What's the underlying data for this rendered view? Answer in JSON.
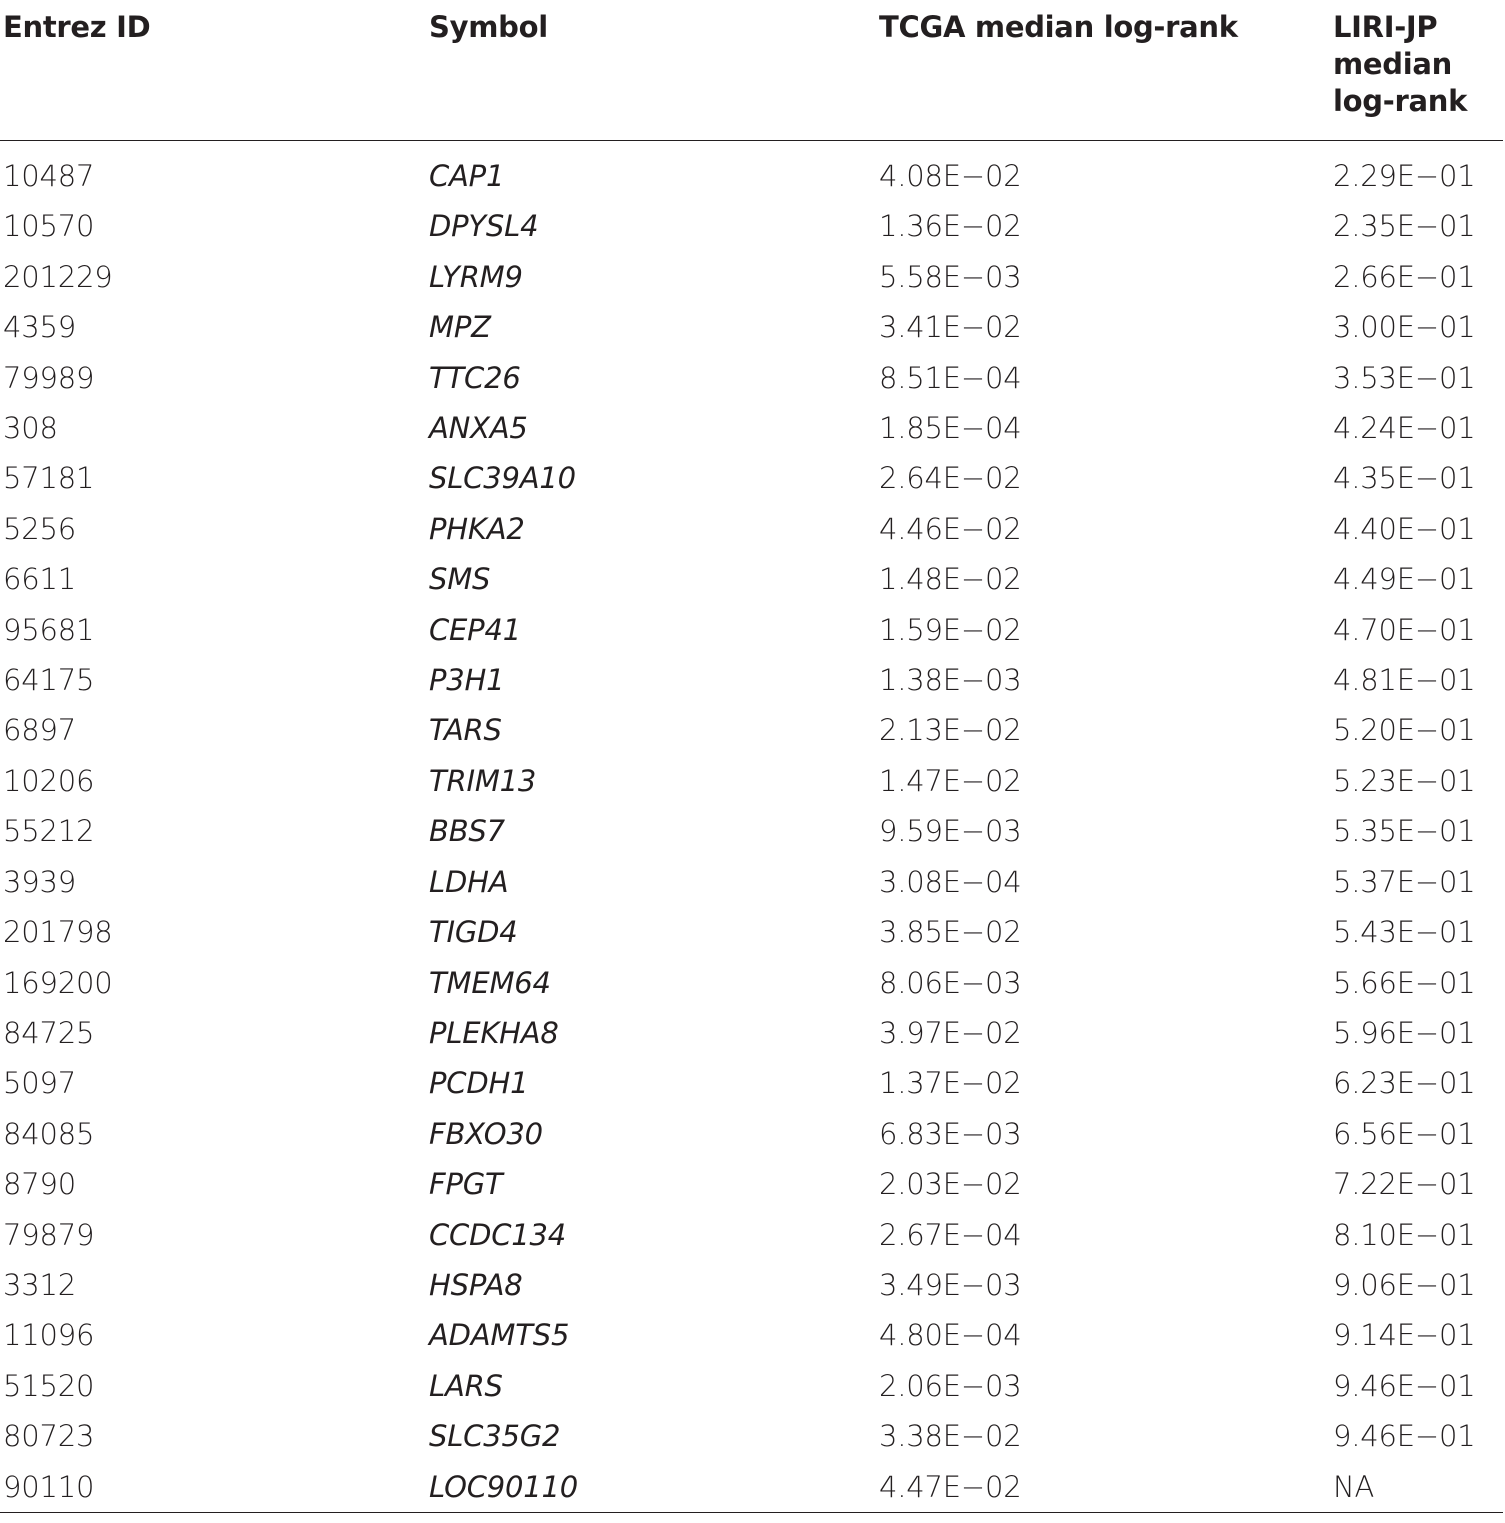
{
  "table": {
    "headers": [
      "Entrez ID",
      "Symbol",
      "TCGA median log-rank",
      "LIRI-JP median log-rank"
    ],
    "rows": [
      [
        "10487",
        "CAP1",
        "4.08E−02",
        "2.29E−01"
      ],
      [
        "10570",
        "DPYSL4",
        "1.36E−02",
        "2.35E−01"
      ],
      [
        "201229",
        "LYRM9",
        "5.58E−03",
        "2.66E−01"
      ],
      [
        "4359",
        "MPZ",
        "3.41E−02",
        "3.00E−01"
      ],
      [
        "79989",
        "TTC26",
        "8.51E−04",
        "3.53E−01"
      ],
      [
        "308",
        "ANXA5",
        "1.85E−04",
        "4.24E−01"
      ],
      [
        "57181",
        "SLC39A10",
        "2.64E−02",
        "4.35E−01"
      ],
      [
        "5256",
        "PHKA2",
        "4.46E−02",
        "4.40E−01"
      ],
      [
        "6611",
        "SMS",
        "1.48E−02",
        "4.49E−01"
      ],
      [
        "95681",
        "CEP41",
        "1.59E−02",
        "4.70E−01"
      ],
      [
        "64175",
        "P3H1",
        "1.38E−03",
        "4.81E−01"
      ],
      [
        "6897",
        "TARS",
        "2.13E−02",
        "5.20E−01"
      ],
      [
        "10206",
        "TRIM13",
        "1.47E−02",
        "5.23E−01"
      ],
      [
        "55212",
        "BBS7",
        "9.59E−03",
        "5.35E−01"
      ],
      [
        "3939",
        "LDHA",
        "3.08E−04",
        "5.37E−01"
      ],
      [
        "201798",
        "TIGD4",
        "3.85E−02",
        "5.43E−01"
      ],
      [
        "169200",
        "TMEM64",
        "8.06E−03",
        "5.66E−01"
      ],
      [
        "84725",
        "PLEKHA8",
        "3.97E−02",
        "5.96E−01"
      ],
      [
        "5097",
        "PCDH1",
        "1.37E−02",
        "6.23E−01"
      ],
      [
        "84085",
        "FBXO30",
        "6.83E−03",
        "6.56E−01"
      ],
      [
        "8790",
        "FPGT",
        "2.03E−02",
        "7.22E−01"
      ],
      [
        "79879",
        "CCDC134",
        "2.67E−04",
        "8.10E−01"
      ],
      [
        "3312",
        "HSPA8",
        "3.49E−03",
        "9.06E−01"
      ],
      [
        "11096",
        "ADAMTS5",
        "4.80E−04",
        "9.14E−01"
      ],
      [
        "51520",
        "LARS",
        "2.06E−03",
        "9.46E−01"
      ],
      [
        "80723",
        "SLC35G2",
        "3.38E−02",
        "9.46E−01"
      ],
      [
        "90110",
        "LOC90110",
        "4.47E−02",
        "NA"
      ]
    ]
  }
}
